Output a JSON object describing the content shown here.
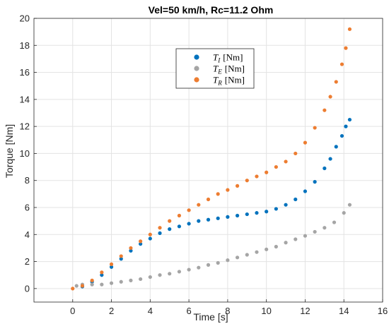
{
  "chart_data": {
    "type": "scatter",
    "title": "Vel=50 km/h, Rc=11.2 Ohm",
    "xlabel": "Time [s]",
    "ylabel": "Torque [Nm]",
    "xlim": [
      -2,
      16
    ],
    "ylim": [
      -1,
      20
    ],
    "xticks": [
      "0",
      "2",
      "4",
      "6",
      "8",
      "10",
      "12",
      "14",
      "16"
    ],
    "yticks": [
      "0",
      "2",
      "4",
      "6",
      "8",
      "10",
      "12",
      "14",
      "16",
      "18",
      "20"
    ],
    "grid": true,
    "legend_placement": "upper-center",
    "series": [
      {
        "name": "T_I [Nm]",
        "legend_main": "T",
        "legend_sub": "I",
        "legend_unit": "[Nm]",
        "color": "#0072BD",
        "x": [
          0.5,
          1,
          1.5,
          2,
          2.5,
          3,
          3.5,
          4,
          4.5,
          5,
          5.5,
          6,
          6.5,
          7,
          7.5,
          8,
          8.5,
          9,
          9.5,
          10,
          10.5,
          11,
          11.5,
          12,
          12.5,
          13,
          13.3,
          13.6,
          13.9,
          14.1,
          14.3
        ],
        "y": [
          0.15,
          0.5,
          1.0,
          1.6,
          2.2,
          2.8,
          3.3,
          3.7,
          4.1,
          4.4,
          4.6,
          4.8,
          5.0,
          5.1,
          5.2,
          5.3,
          5.4,
          5.5,
          5.6,
          5.7,
          5.9,
          6.2,
          6.6,
          7.2,
          7.9,
          8.9,
          9.6,
          10.5,
          11.3,
          12.0,
          12.5
        ]
      },
      {
        "name": "T_E [Nm]",
        "legend_main": "T",
        "legend_sub": "E",
        "legend_unit": "[Nm]",
        "color": "#A5A5A5",
        "x": [
          0.2,
          0.5,
          1,
          1.5,
          2,
          2.5,
          3,
          3.5,
          4,
          4.5,
          5,
          5.5,
          6,
          6.5,
          7,
          7.5,
          8,
          8.5,
          9,
          9.5,
          10,
          10.5,
          11,
          11.5,
          12,
          12.5,
          13,
          13.5,
          14,
          14.3
        ],
        "y": [
          0.2,
          0.3,
          0.3,
          0.3,
          0.4,
          0.5,
          0.6,
          0.7,
          0.85,
          1.0,
          1.1,
          1.25,
          1.4,
          1.55,
          1.75,
          1.9,
          2.1,
          2.3,
          2.5,
          2.7,
          2.9,
          3.1,
          3.4,
          3.65,
          3.9,
          4.2,
          4.5,
          4.9,
          5.6,
          6.2
        ]
      },
      {
        "name": "T_R [Nm]",
        "legend_main": "T",
        "legend_sub": "R",
        "legend_unit": "[Nm]",
        "color": "#ED7D31",
        "x": [
          0,
          0.5,
          1,
          1.5,
          2,
          2.5,
          3,
          3.5,
          4,
          4.5,
          5,
          5.5,
          6,
          6.5,
          7,
          7.5,
          8,
          8.5,
          9,
          9.5,
          10,
          10.5,
          11,
          11.5,
          12,
          12.5,
          13,
          13.3,
          13.6,
          13.9,
          14.1,
          14.3
        ],
        "y": [
          0,
          0.2,
          0.6,
          1.2,
          1.8,
          2.4,
          3.0,
          3.5,
          4.0,
          4.5,
          5.0,
          5.4,
          5.8,
          6.2,
          6.6,
          7.0,
          7.3,
          7.6,
          8.0,
          8.3,
          8.6,
          9.0,
          9.4,
          10.0,
          10.8,
          11.9,
          13.2,
          14.2,
          15.3,
          16.6,
          17.8,
          19.2
        ]
      }
    ]
  }
}
